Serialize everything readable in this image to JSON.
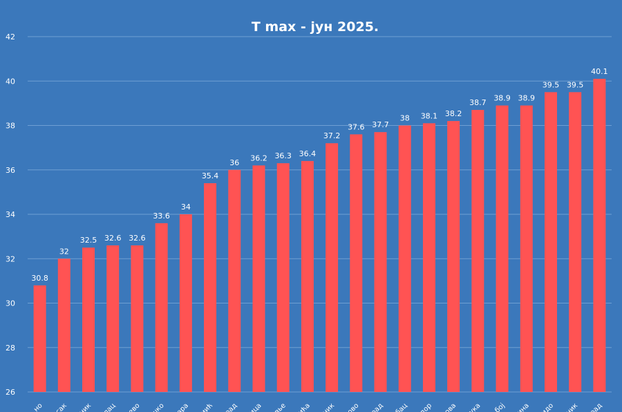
{
  "chart_data": {
    "type": "bar",
    "title": "T max - јун 2025.",
    "xlabel": "",
    "ylabel": "",
    "ylim": [
      26,
      42
    ],
    "yticks": [
      26,
      28,
      30,
      32,
      34,
      36,
      38,
      40,
      42
    ],
    "grid": true,
    "legend": "none",
    "bar_color": "#ff5353",
    "background_color": "#3b78bb",
    "categories": [
      "...но",
      "...сак",
      "...ник",
      "...лац",
      "...ево",
      "...шко",
      "...ара",
      "...иић",
      "...рад",
      "...ица",
      "...вье",
      "...ића",
      "...ник",
      "...ово",
      "...рад",
      "...бац",
      "...дор",
      "...ова",
      "...ука",
      "...бој",
      "...ина",
      "...идо",
      "...ник",
      "...рад"
    ],
    "values": [
      30.8,
      32,
      32.5,
      32.6,
      32.6,
      33.6,
      34,
      35.4,
      36,
      36.2,
      36.3,
      36.4,
      37.2,
      37.6,
      37.7,
      38,
      38.1,
      38.2,
      38.7,
      38.9,
      38.9,
      39.5,
      39.5,
      40.1
    ]
  }
}
